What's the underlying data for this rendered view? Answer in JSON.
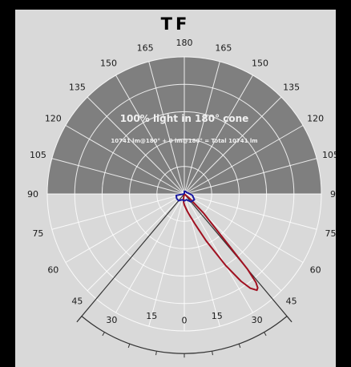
{
  "chart_data": {
    "type": "polar",
    "title": "TF",
    "headline": "100% light in 180° cone",
    "subline": "10741 lm@180° + 0 lm@180° = Total 10741 lm",
    "angle_labels": [
      "180",
      "165",
      "165",
      "150",
      "150",
      "135",
      "135",
      "120",
      "120",
      "105",
      "105",
      "90",
      "90",
      "75",
      "75",
      "60",
      "60",
      "45",
      "45",
      "30",
      "30",
      "15",
      "15",
      "0"
    ],
    "upper_fill_color": "#7f7f7f",
    "background_color": "#d9d9d9",
    "series": [
      {
        "color": "#a01020",
        "angles_deg": [
          -10,
          -5,
          0,
          5,
          10,
          15,
          20,
          25,
          30,
          33,
          35,
          37,
          38,
          39,
          40,
          45,
          50
        ],
        "values": [
          0.03,
          0.06,
          0.08,
          0.1,
          0.13,
          0.17,
          0.24,
          0.38,
          0.6,
          0.76,
          0.84,
          0.88,
          0.87,
          0.83,
          0.72,
          0.2,
          0.05
        ]
      },
      {
        "color": "#1a1aa0",
        "angles_deg": [
          -80,
          -60,
          -40,
          -20,
          0,
          20,
          40,
          60,
          80,
          100,
          120,
          140,
          160,
          180
        ],
        "values": [
          0.06,
          0.065,
          0.065,
          0.045,
          0.05,
          0.045,
          0.075,
          0.085,
          0.06,
          0.03,
          0.02,
          0.02,
          0.02,
          0.02
        ]
      }
    ],
    "cone_lines_deg": [
      -40,
      40
    ],
    "scale_arc_span_deg": [
      -40,
      40
    ]
  }
}
